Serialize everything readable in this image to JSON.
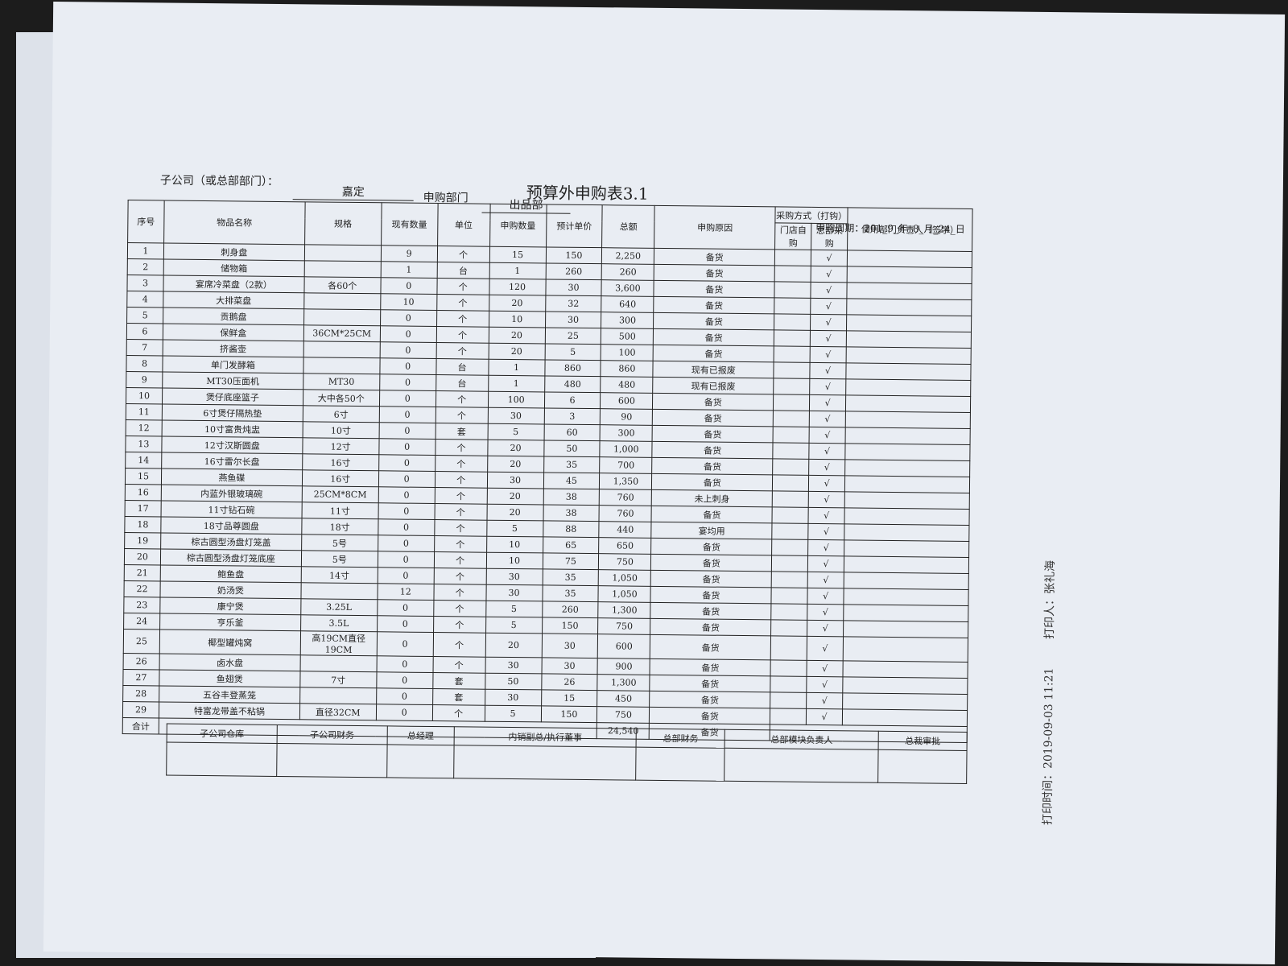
{
  "header": {
    "company_label": "子公司（或总部部门）：",
    "company": "嘉定",
    "dept_label": "申购部门",
    "dept": "出品部",
    "title": "预算外申购表3.1",
    "period": "申购周期：201_9_年_8_月_24_日"
  },
  "table": {
    "columns": [
      "序号",
      "物品名称",
      "规格",
      "现有数量",
      "单位",
      "申购数量",
      "预计单价",
      "总额",
      "申购原因"
    ],
    "method_label": "采购方式（打钩）",
    "method_columns": [
      "门店自购",
      "总部采购"
    ],
    "signer_label": "使用部门负责人（签字）",
    "rows": [
      {
        "no": "1",
        "name": "刺身盘",
        "have": "9",
        "unit": "个",
        "qty": "15",
        "price": "150",
        "total": "2,250",
        "reason": "备货",
        "hq": "√"
      },
      {
        "no": "2",
        "name": "储物箱",
        "have": "1",
        "unit": "台",
        "qty": "1",
        "price": "260",
        "total": "260",
        "reason": "备货",
        "hq": "√"
      },
      {
        "no": "3",
        "name": "宴席冷菜盘（2款）",
        "spec": "各60个",
        "have": "0",
        "unit": "个",
        "qty": "120",
        "price": "30",
        "total": "3,600",
        "reason": "备货",
        "hq": "√"
      },
      {
        "no": "4",
        "name": "大排菜盘",
        "have": "10",
        "unit": "个",
        "qty": "20",
        "price": "32",
        "total": "640",
        "reason": "备货",
        "hq": "√"
      },
      {
        "no": "5",
        "name": "贡鹅盘",
        "have": "0",
        "unit": "个",
        "qty": "10",
        "price": "30",
        "total": "300",
        "reason": "备货",
        "hq": "√"
      },
      {
        "no": "6",
        "name": "保鲜盒",
        "spec": "36CM*25CM",
        "have": "0",
        "unit": "个",
        "qty": "20",
        "price": "25",
        "total": "500",
        "reason": "备货",
        "hq": "√"
      },
      {
        "no": "7",
        "name": "挤酱壶",
        "have": "0",
        "unit": "个",
        "qty": "20",
        "price": "5",
        "total": "100",
        "reason": "备货",
        "hq": "√"
      },
      {
        "no": "8",
        "name": "单门发酵箱",
        "have": "0",
        "unit": "台",
        "qty": "1",
        "price": "860",
        "total": "860",
        "reason": "现有已报废",
        "hq": "√"
      },
      {
        "no": "9",
        "name": "MT30压面机",
        "spec": "MT30",
        "have": "0",
        "unit": "台",
        "qty": "1",
        "price": "480",
        "total": "480",
        "reason": "现有已报废",
        "hq": "√"
      },
      {
        "no": "10",
        "name": "煲仔底座篮子",
        "spec": "大中各50个",
        "have": "0",
        "unit": "个",
        "qty": "100",
        "price": "6",
        "total": "600",
        "reason": "备货",
        "hq": "√"
      },
      {
        "no": "11",
        "name": "6寸煲仔隔热垫",
        "spec": "6寸",
        "have": "0",
        "unit": "个",
        "qty": "30",
        "price": "3",
        "total": "90",
        "reason": "备货",
        "hq": "√"
      },
      {
        "no": "12",
        "name": "10寸富贵炖盅",
        "spec": "10寸",
        "have": "0",
        "unit": "套",
        "qty": "5",
        "price": "60",
        "total": "300",
        "reason": "备货",
        "hq": "√"
      },
      {
        "no": "13",
        "name": "12寸汉斯圆盘",
        "spec": "12寸",
        "have": "0",
        "unit": "个",
        "qty": "20",
        "price": "50",
        "total": "1,000",
        "reason": "备货",
        "hq": "√"
      },
      {
        "no": "14",
        "name": "16寸雷尔长盘",
        "spec": "16寸",
        "have": "0",
        "unit": "个",
        "qty": "20",
        "price": "35",
        "total": "700",
        "reason": "备货",
        "hq": "√"
      },
      {
        "no": "15",
        "name": "燕鱼碟",
        "spec": "16寸",
        "have": "0",
        "unit": "个",
        "qty": "30",
        "price": "45",
        "total": "1,350",
        "reason": "备货",
        "hq": "√"
      },
      {
        "no": "16",
        "name": "内蓝外银玻璃碗",
        "spec": "25CM*8CM",
        "have": "0",
        "unit": "个",
        "qty": "20",
        "price": "38",
        "total": "760",
        "reason": "未上刺身",
        "hq": "√"
      },
      {
        "no": "17",
        "name": "11寸钻石碗",
        "spec": "11寸",
        "have": "0",
        "unit": "个",
        "qty": "20",
        "price": "38",
        "total": "760",
        "reason": "备货",
        "hq": "√"
      },
      {
        "no": "18",
        "name": "18寸品尊圆盘",
        "spec": "18寸",
        "have": "0",
        "unit": "个",
        "qty": "5",
        "price": "88",
        "total": "440",
        "reason": "宴均用",
        "hq": "√"
      },
      {
        "no": "19",
        "name": "棕古圆型汤盘灯笼盖",
        "spec": "5号",
        "have": "0",
        "unit": "个",
        "qty": "10",
        "price": "65",
        "total": "650",
        "reason": "备货",
        "hq": "√"
      },
      {
        "no": "20",
        "name": "棕古圆型汤盘灯笼底座",
        "spec": "5号",
        "have": "0",
        "unit": "个",
        "qty": "10",
        "price": "75",
        "total": "750",
        "reason": "备货",
        "hq": "√"
      },
      {
        "no": "21",
        "name": "鲍鱼盘",
        "spec": "14寸",
        "have": "0",
        "unit": "个",
        "qty": "30",
        "price": "35",
        "total": "1,050",
        "reason": "备货",
        "hq": "√"
      },
      {
        "no": "22",
        "name": "奶汤煲",
        "have": "12",
        "unit": "个",
        "qty": "30",
        "price": "35",
        "total": "1,050",
        "reason": "备货",
        "hq": "√"
      },
      {
        "no": "23",
        "name": "康宁煲",
        "spec": "3.25L",
        "have": "0",
        "unit": "个",
        "qty": "5",
        "price": "260",
        "total": "1,300",
        "reason": "备货",
        "hq": "√"
      },
      {
        "no": "24",
        "name": "亨乐釜",
        "spec": "3.5L",
        "have": "0",
        "unit": "个",
        "qty": "5",
        "price": "150",
        "total": "750",
        "reason": "备货",
        "hq": "√"
      },
      {
        "no": "25",
        "name": "椰型罐炖窝",
        "spec": "高19CM直径19CM",
        "have": "0",
        "unit": "个",
        "qty": "20",
        "price": "30",
        "total": "600",
        "reason": "备货",
        "hq": "√"
      },
      {
        "no": "26",
        "name": "卤水盘",
        "have": "0",
        "unit": "个",
        "qty": "30",
        "price": "30",
        "total": "900",
        "reason": "备货",
        "hq": "√"
      },
      {
        "no": "27",
        "name": "鱼翅煲",
        "spec": "7寸",
        "have": "0",
        "unit": "套",
        "qty": "50",
        "price": "26",
        "total": "1,300",
        "reason": "备货",
        "hq": "√"
      },
      {
        "no": "28",
        "name": "五谷丰登蒸笼",
        "have": "0",
        "unit": "套",
        "qty": "30",
        "price": "15",
        "total": "450",
        "reason": "备货",
        "hq": "√"
      },
      {
        "no": "29",
        "name": "特富龙带盖不粘锅",
        "spec": "直径32CM",
        "have": "0",
        "unit": "个",
        "qty": "5",
        "price": "150",
        "total": "750",
        "reason": "备货",
        "hq": "√"
      }
    ],
    "total_label": "合计",
    "total": "24,540",
    "total_reason": "备货"
  },
  "approvals": [
    "子公司仓库",
    "子公司财务",
    "总经理",
    "内销副总/执行董事",
    "总部财务",
    "总部模块负责人",
    "总裁审批"
  ],
  "print_info": {
    "time": "打印时间：2019-09-03 11:21",
    "printer": "打印人：张礼海"
  }
}
